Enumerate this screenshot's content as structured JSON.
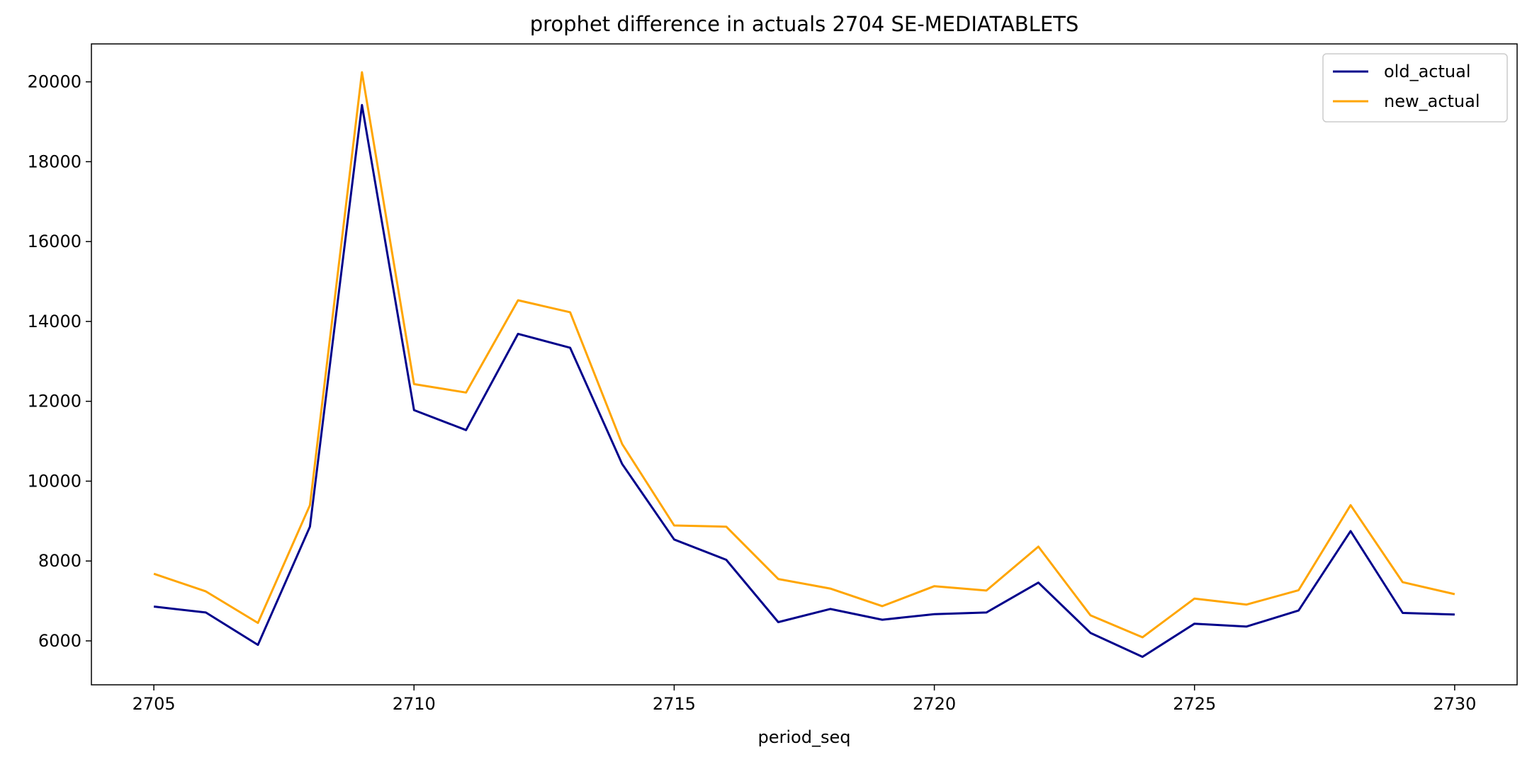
{
  "chart_data": {
    "type": "line",
    "title": "prophet difference in actuals 2704 SE-MEDIATABLETS",
    "xlabel": "period_seq",
    "ylabel": "",
    "x": [
      2705,
      2706,
      2707,
      2708,
      2709,
      2710,
      2711,
      2712,
      2713,
      2714,
      2715,
      2716,
      2717,
      2718,
      2719,
      2720,
      2721,
      2722,
      2723,
      2724,
      2725,
      2726,
      2727,
      2728,
      2729,
      2730
    ],
    "xlim": [
      2703.8,
      2731.2
    ],
    "ylim": [
      4900,
      20950
    ],
    "xticks": [
      2705,
      2710,
      2715,
      2720,
      2725,
      2730
    ],
    "yticks": [
      6000,
      8000,
      10000,
      12000,
      14000,
      16000,
      18000,
      20000
    ],
    "xtick_labels": [
      "2705",
      "2710",
      "2715",
      "2720",
      "2725",
      "2730"
    ],
    "ytick_labels": [
      "6000",
      "8000",
      "10000",
      "12000",
      "14000",
      "16000",
      "18000",
      "20000"
    ],
    "grid": false,
    "legend_position": "top-right",
    "series": [
      {
        "name": "old_actual",
        "color": "#00008b",
        "values": [
          6860,
          6710,
          5900,
          8860,
          19420,
          11780,
          11280,
          13690,
          13340,
          10430,
          8540,
          8030,
          6470,
          6800,
          6530,
          6670,
          6710,
          7460,
          6200,
          5600,
          6430,
          6360,
          6760,
          8750,
          6700,
          6660
        ]
      },
      {
        "name": "new_actual",
        "color": "#ffa500",
        "values": [
          7680,
          7240,
          6450,
          9400,
          20240,
          12430,
          12220,
          14530,
          14230,
          10930,
          8890,
          8860,
          7550,
          7310,
          6870,
          7370,
          7260,
          8360,
          6640,
          6090,
          7060,
          6910,
          7270,
          9400,
          7470,
          7170
        ]
      }
    ]
  }
}
